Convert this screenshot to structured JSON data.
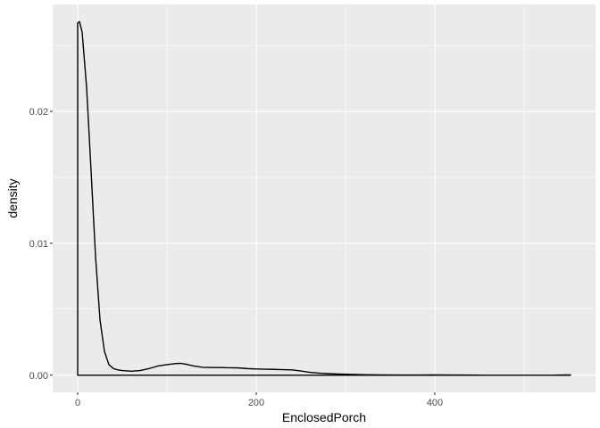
{
  "chart_data": {
    "type": "area",
    "title": "",
    "xlabel": "EnclosedPorch",
    "ylabel": "density",
    "xlim": [
      -28,
      580
    ],
    "ylim": [
      -0.0013,
      0.0281
    ],
    "x_ticks": [
      {
        "value": 0,
        "label": "0"
      },
      {
        "value": 200,
        "label": "200"
      },
      {
        "value": 400,
        "label": "400"
      }
    ],
    "x_minor_ticks": [
      100,
      300,
      500
    ],
    "y_ticks": [
      {
        "value": 0.0,
        "label": "0.00"
      },
      {
        "value": 0.01,
        "label": "0.01"
      },
      {
        "value": 0.02,
        "label": "0.02"
      }
    ],
    "y_minor_ticks": [
      0.005,
      0.015,
      0.025
    ],
    "grid": true,
    "background": "#ebebeb",
    "grid_color": "#ffffff",
    "line_color": "#000000",
    "series": [
      {
        "x": [
          0,
          2,
          5,
          10,
          15,
          20,
          25,
          30,
          35,
          40,
          45,
          50,
          60,
          70,
          80,
          90,
          100,
          110,
          115,
          120,
          130,
          140,
          150,
          160,
          170,
          180,
          190,
          200,
          210,
          220,
          230,
          240,
          250,
          260,
          270,
          280,
          300,
          320,
          340,
          360,
          380,
          400,
          430,
          460,
          500,
          530,
          552
        ],
        "y": [
          0.0267,
          0.0268,
          0.026,
          0.0218,
          0.0155,
          0.009,
          0.0042,
          0.0018,
          0.0008,
          0.0005,
          0.0004,
          0.00035,
          0.0003,
          0.00035,
          0.0005,
          0.0007,
          0.0008,
          0.00088,
          0.0009,
          0.00085,
          0.0007,
          0.0006,
          0.00058,
          0.00058,
          0.00056,
          0.00055,
          0.0005,
          0.00047,
          0.00045,
          0.00044,
          0.00042,
          0.0004,
          0.00032,
          0.00022,
          0.00016,
          0.00012,
          7e-05,
          4e-05,
          2e-05,
          1e-05,
          1e-05,
          2e-05,
          1e-05,
          0.0,
          0.0,
          0.0,
          2e-05
        ]
      }
    ]
  }
}
